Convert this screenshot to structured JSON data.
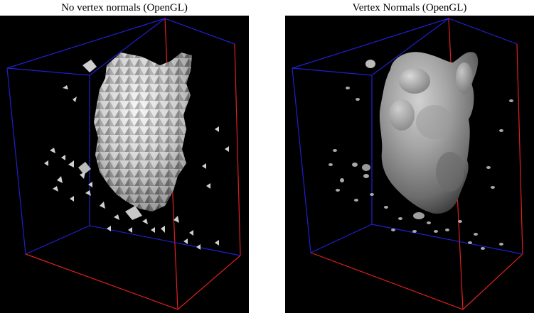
{
  "figure": {
    "left_caption": "No vertex normals (OpenGL)",
    "right_caption": "Vertex Normals (OpenGL)",
    "panels": [
      {
        "id": "left",
        "shading": "flat",
        "background": "#000000"
      },
      {
        "id": "right",
        "shading": "smooth",
        "background": "#000000"
      }
    ],
    "colors": {
      "box_back_edges": "#2020d0",
      "box_front_edges": "#e02020",
      "surface": "#d8d8d8"
    }
  }
}
